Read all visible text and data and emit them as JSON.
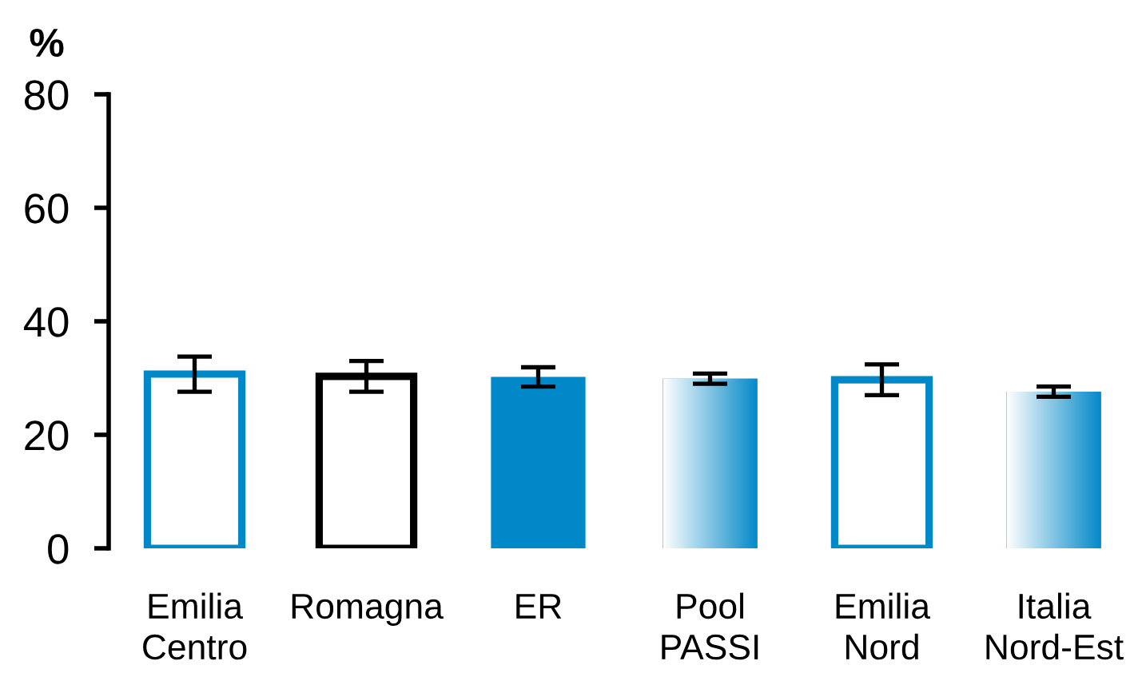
{
  "chart_data": {
    "type": "bar",
    "ylabel": "%",
    "categories": [
      "Emilia\nCentro",
      "Romagna",
      "ER",
      "Pool\nPASSI",
      "Emilia\nNord",
      "Italia\nNord-Est"
    ],
    "values": [
      30.7,
      30.3,
      30.2,
      29.9,
      29.7,
      27.6
    ],
    "errors": [
      3.1,
      2.7,
      1.7,
      0.9,
      2.7,
      0.9
    ],
    "colors": [
      "#0088c8",
      "#000000",
      "#0088c8",
      "#0088c8",
      "#0088c8",
      "#0088c8"
    ],
    "ylim": [
      0,
      80
    ],
    "yticks": [
      0,
      20,
      40,
      60,
      80
    ]
  }
}
